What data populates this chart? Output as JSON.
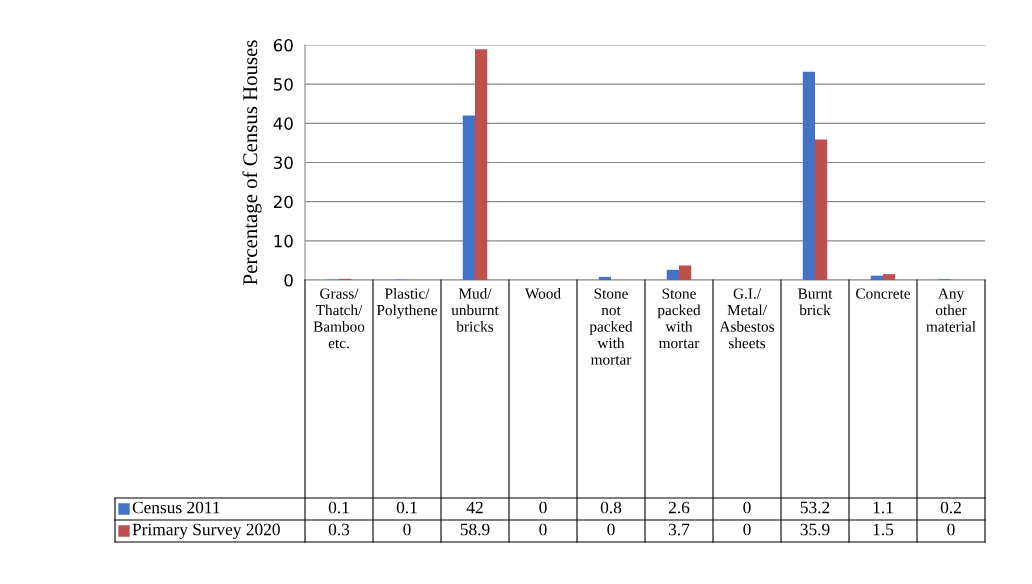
{
  "chart_data": {
    "type": "bar",
    "ylabel": "Percentage of Census Houses",
    "categories": [
      "Grass/ Thatch/ Bamboo etc.",
      "Plastic/ Polythene",
      "Mud/ unburnt bricks",
      "Wood",
      "Stone not packed with mortar",
      "Stone packed with mortar",
      "G.I./ Metal/ Asbestos sheets",
      "Burnt brick",
      "Concrete",
      "Any other material"
    ],
    "series": [
      {
        "name": "Census 2011",
        "color": "#4472c4",
        "values": [
          0.1,
          0.1,
          42,
          0,
          0.8,
          2.6,
          0,
          53.2,
          1.1,
          0.2
        ]
      },
      {
        "name": "Primary Survey 2020",
        "color": "#c0504d",
        "values": [
          0.3,
          0,
          58.9,
          0,
          0,
          3.7,
          0,
          35.9,
          1.5,
          0
        ]
      }
    ],
    "ylim": [
      0,
      60
    ],
    "yticks": [
      0,
      10,
      20,
      30,
      40,
      50,
      60
    ],
    "grid": "y",
    "legend": "bottom left",
    "data_labels": true
  }
}
